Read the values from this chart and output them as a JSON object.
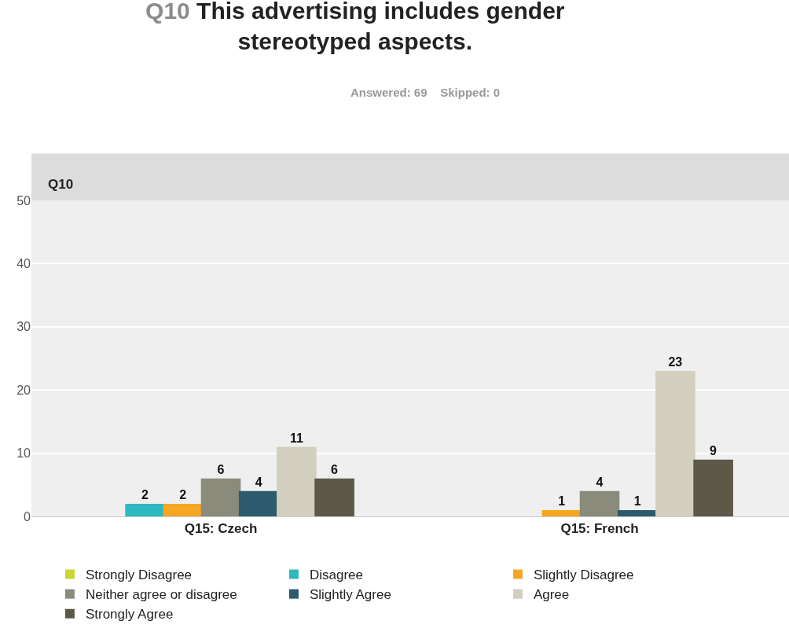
{
  "chart_data": {
    "type": "bar",
    "title": "Q10 This advertising includes gender stereotyped aspects.",
    "subtitle": "Answered: 69    Skipped: 0",
    "annotations": [
      "Q10"
    ],
    "categories": [
      "Q15: Czech",
      "Q15: French"
    ],
    "series": [
      {
        "name": "Strongly Disagree",
        "color": "#ccd62e",
        "values": [
          0,
          0
        ],
        "value_labels": [
          null,
          null
        ]
      },
      {
        "name": "Disagree",
        "color": "#2fb8c0",
        "values": [
          2,
          0
        ],
        "value_labels": [
          "2",
          null
        ]
      },
      {
        "name": "Slightly Disagree",
        "color": "#f5a623",
        "values": [
          2,
          1
        ],
        "value_labels": [
          "2",
          "1"
        ]
      },
      {
        "name": "Neither agree or disagree",
        "color": "#8b8b7b",
        "values": [
          6,
          4
        ],
        "value_labels": [
          "6",
          "4"
        ]
      },
      {
        "name": "Slightly Agree",
        "color": "#2d5b6d",
        "values": [
          4,
          1
        ],
        "value_labels": [
          "4",
          "1"
        ]
      },
      {
        "name": "Agree",
        "color": "#d2cfbf",
        "values": [
          11,
          23
        ],
        "value_labels": [
          "11",
          "23"
        ]
      },
      {
        "name": "Strongly Agree",
        "color": "#5c5949",
        "values": [
          6,
          9
        ],
        "value_labels": [
          "6",
          "9"
        ]
      }
    ],
    "ylim": [
      0,
      50
    ],
    "yticks": [
      0,
      10,
      20,
      30,
      40,
      50
    ],
    "grid": "y",
    "legend": "bottom"
  }
}
